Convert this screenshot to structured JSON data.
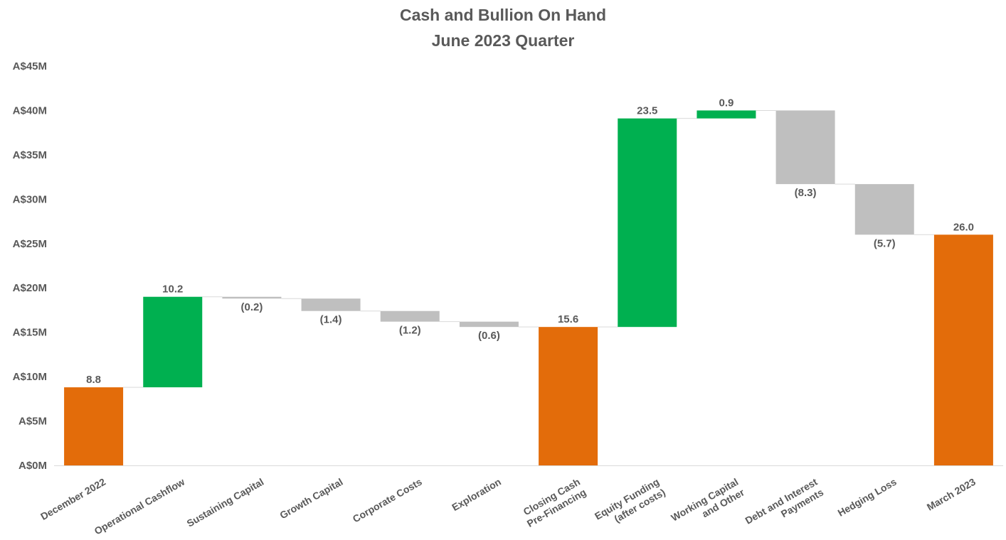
{
  "chart_data": {
    "type": "bar",
    "subtype": "waterfall",
    "title": "Cash and Bullion On Hand",
    "subtitle": "June 2023 Quarter",
    "xlabel": "",
    "ylabel": "",
    "ylim": [
      0,
      45
    ],
    "y_ticks": [
      "A$0M",
      "A$5M",
      "A$10M",
      "A$15M",
      "A$20M",
      "A$25M",
      "A$30M",
      "A$35M",
      "A$40M",
      "A$45M"
    ],
    "grid": false,
    "legend": "none",
    "colors": {
      "total": "#E36C0A",
      "increase": "#00B050",
      "decrease": "#BFBFBF",
      "connector": "#D9D9D9",
      "text": "#595959"
    },
    "bars": [
      {
        "category": [
          "December 2022"
        ],
        "kind": "total",
        "start": 0,
        "end": 8.8,
        "label": "8.8"
      },
      {
        "category": [
          "Operational Cashflow"
        ],
        "kind": "increase",
        "start": 8.8,
        "end": 19.0,
        "label": "10.2"
      },
      {
        "category": [
          "Sustaining Capital"
        ],
        "kind": "decrease",
        "start": 19.0,
        "end": 18.8,
        "label": "(0.2)"
      },
      {
        "category": [
          "Growth Capital"
        ],
        "kind": "decrease",
        "start": 18.8,
        "end": 17.4,
        "label": "(1.4)"
      },
      {
        "category": [
          "Corporate Costs"
        ],
        "kind": "decrease",
        "start": 17.4,
        "end": 16.2,
        "label": "(1.2)"
      },
      {
        "category": [
          "Exploration"
        ],
        "kind": "decrease",
        "start": 16.2,
        "end": 15.6,
        "label": "(0.6)"
      },
      {
        "category": [
          "Closing Cash",
          "Pre-Financing"
        ],
        "kind": "total",
        "start": 0,
        "end": 15.6,
        "label": "15.6"
      },
      {
        "category": [
          "Equity Funding",
          "(after costs)"
        ],
        "kind": "increase",
        "start": 15.6,
        "end": 39.1,
        "label": "23.5"
      },
      {
        "category": [
          "Working Capital",
          "and Other"
        ],
        "kind": "increase",
        "start": 39.1,
        "end": 40.0,
        "label": "0.9"
      },
      {
        "category": [
          "Debt and Interest",
          "Payments"
        ],
        "kind": "decrease",
        "start": 40.0,
        "end": 31.7,
        "label": "(8.3)"
      },
      {
        "category": [
          "Hedging Loss"
        ],
        "kind": "decrease",
        "start": 31.7,
        "end": 26.0,
        "label": "(5.7)"
      },
      {
        "category": [
          "March 2023"
        ],
        "kind": "total",
        "start": 0,
        "end": 26.0,
        "label": "26.0"
      }
    ]
  }
}
